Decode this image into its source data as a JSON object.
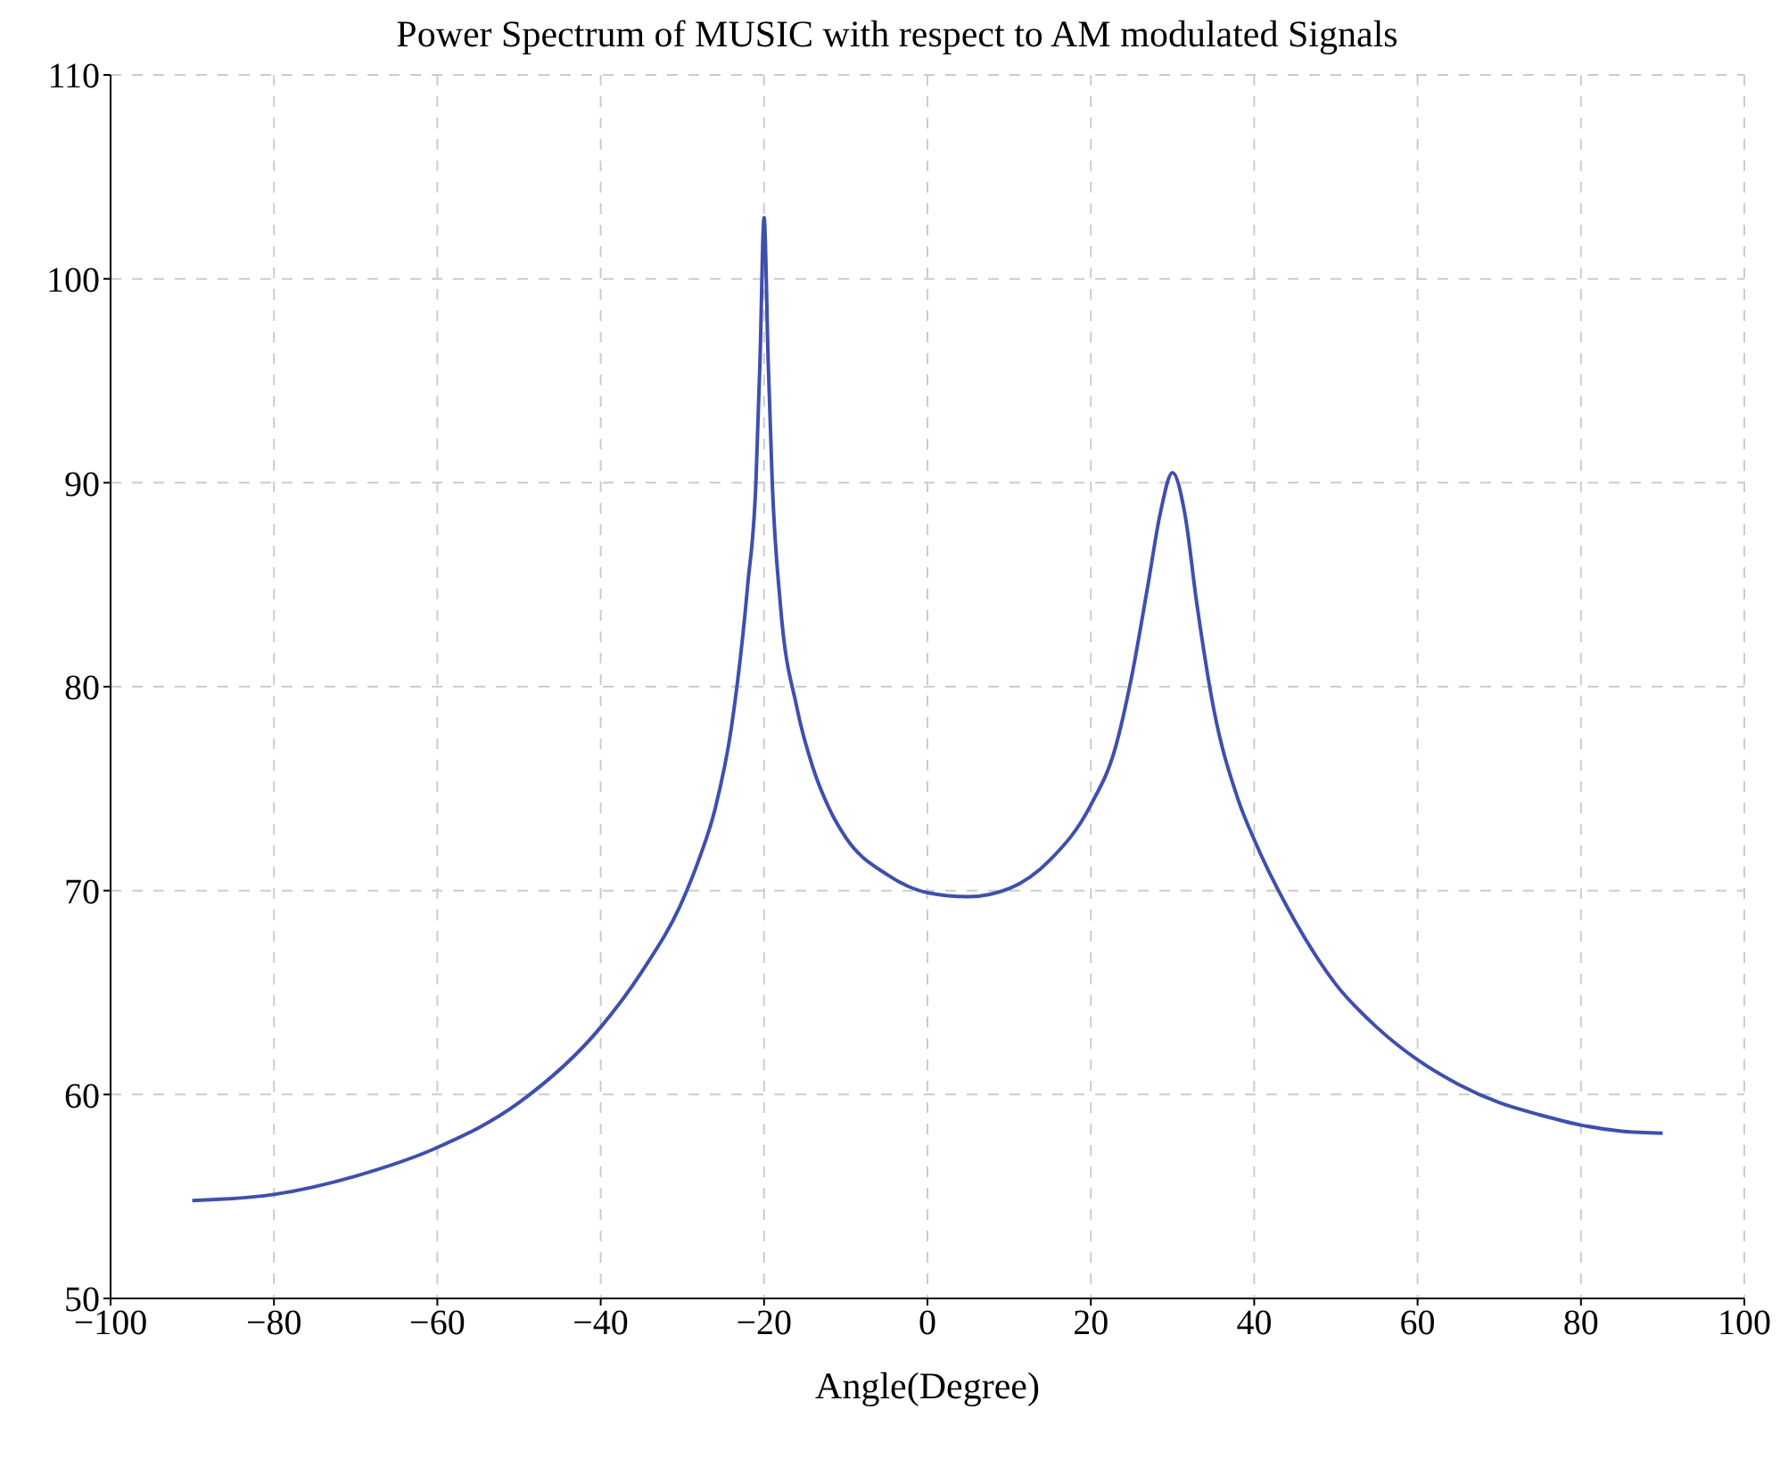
{
  "chart_data": {
    "type": "line",
    "title": "Power Spectrum of MUSIC with respect to AM modulated Signals",
    "xlabel": "Angle(Degree)",
    "x": [
      -90,
      -80,
      -70,
      -60,
      -50,
      -40,
      -35,
      -30,
      -28,
      -26,
      -24,
      -22,
      -21,
      -20.5,
      -20,
      -19.5,
      -19,
      -18,
      -16,
      -14,
      -12,
      -10,
      -5,
      0,
      5,
      10,
      15,
      20,
      23,
      25,
      27,
      28.5,
      30,
      31.5,
      33,
      35,
      38,
      40,
      45,
      50,
      55,
      60,
      65,
      70,
      75,
      80,
      85,
      90
    ],
    "series": [
      {
        "color": "#3f4fae",
        "values": [
          54.8,
          55.1,
          56.0,
          57.4,
          59.6,
          63.3,
          66,
          69.5,
          71.5,
          74,
          78,
          85,
          90,
          96,
          103,
          96,
          90,
          84,
          79,
          76,
          74,
          72.6,
          70.8,
          69.9,
          69.7,
          70.1,
          71.5,
          74.2,
          77,
          80.5,
          85,
          88.5,
          90.5,
          88.5,
          84,
          79,
          74.5,
          72.5,
          68.5,
          65.4,
          63.3,
          61.7,
          60.5,
          59.6,
          59.0,
          58.5,
          58.2,
          58.1
        ]
      }
    ],
    "xlim": [
      -100,
      100
    ],
    "xticks": [
      -100,
      -80,
      -60,
      -40,
      -20,
      0,
      20,
      40,
      60,
      80,
      100
    ],
    "ylim": [
      50,
      110
    ],
    "yticks": [
      50,
      60,
      70,
      80,
      90,
      100,
      110
    ],
    "grid": true,
    "marker": "none",
    "line_style": "solid"
  }
}
